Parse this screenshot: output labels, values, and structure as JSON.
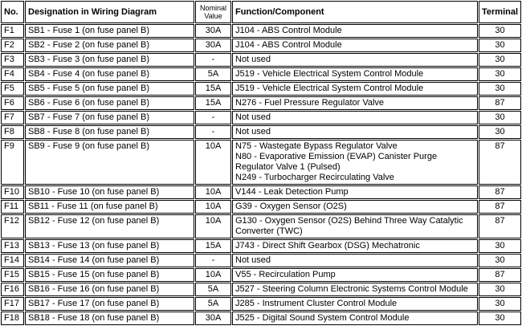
{
  "table": {
    "headers": {
      "no": "No.",
      "designation": "Designation in Wiring Diagram",
      "nominal": "Nominal\nValue",
      "function": "Function/Component",
      "terminal": "Terminal"
    },
    "rows": [
      {
        "no": "F1",
        "designation": "SB1 - Fuse 1 (on fuse panel B)",
        "nominal": "30A",
        "function": "J104 - ABS Control Module",
        "terminal": "30"
      },
      {
        "no": "F2",
        "designation": "SB2 - Fuse 2 (on fuse panel B)",
        "nominal": "30A",
        "function": "J104 - ABS Control Module",
        "terminal": "30"
      },
      {
        "no": "F3",
        "designation": "SB3 - Fuse 3 (on fuse panel B)",
        "nominal": "-",
        "function": "Not used",
        "terminal": "30"
      },
      {
        "no": "F4",
        "designation": "SB4 - Fuse 4 (on fuse panel B)",
        "nominal": "5A",
        "function": "J519 - Vehicle Electrical System Control Module",
        "terminal": "30"
      },
      {
        "no": "F5",
        "designation": "SB5 - Fuse 5 (on fuse panel B)",
        "nominal": "15A",
        "function": "J519 - Vehicle Electrical System Control Module",
        "terminal": "30"
      },
      {
        "no": "F6",
        "designation": "SB6 - Fuse 6 (on fuse panel B)",
        "nominal": "15A",
        "function": "N276 - Fuel Pressure Regulator Valve",
        "terminal": "87"
      },
      {
        "no": "F7",
        "designation": "SB7 - Fuse 7 (on fuse panel B)",
        "nominal": "-",
        "function": "Not used",
        "terminal": "30"
      },
      {
        "no": "F8",
        "designation": "SB8 - Fuse 8 (on fuse panel B)",
        "nominal": "-",
        "function": "Not used",
        "terminal": "30"
      },
      {
        "no": "F9",
        "designation": "SB9 - Fuse 9 (on fuse panel B)",
        "nominal": "10A",
        "function": "N75 - Wastegate Bypass Regulator Valve\nN80 - Evaporative Emission (EVAP) Canister Purge Regulator Valve 1 (Pulsed)\nN249 - Turbocharger Recirculating Valve",
        "terminal": "87"
      },
      {
        "no": "F10",
        "designation": "SB10 - Fuse 10 (on fuse panel B)",
        "nominal": "10A",
        "function": "V144 - Leak Detection Pump",
        "terminal": "87"
      },
      {
        "no": "F11",
        "designation": "SB11 - Fuse 11 (on fuse panel B)",
        "nominal": "10A",
        "function": "G39 - Oxygen Sensor (O2S)",
        "terminal": "87"
      },
      {
        "no": "F12",
        "designation": "SB12 - Fuse 12 (on fuse panel B)",
        "nominal": "10A",
        "function": "G130 - Oxygen Sensor (O2S) Behind Three Way Catalytic Converter (TWC)",
        "terminal": "87"
      },
      {
        "no": "F13",
        "designation": "SB13 - Fuse 13 (on fuse panel B)",
        "nominal": "15A",
        "function": "J743 - Direct Shift Gearbox (DSG) Mechatronic",
        "terminal": "30"
      },
      {
        "no": "F14",
        "designation": "SB14 - Fuse 14 (on fuse panel B)",
        "nominal": "-",
        "function": "Not used",
        "terminal": "30"
      },
      {
        "no": "F15",
        "designation": "SB15 - Fuse 15 (on fuse panel B)",
        "nominal": "10A",
        "function": "V55 - Recirculation Pump",
        "terminal": "87"
      },
      {
        "no": "F16",
        "designation": "SB16 - Fuse 16 (on fuse panel B)",
        "nominal": "5A",
        "function": "J527 - Steering Column Electronic Systems Control Module",
        "terminal": "30"
      },
      {
        "no": "F17",
        "designation": "SB17 - Fuse 17 (on fuse panel B)",
        "nominal": "5A",
        "function": "J285 - Instrument Cluster Control Module",
        "terminal": "30"
      },
      {
        "no": "F18",
        "designation": "SB18 - Fuse 18 (on fuse panel B)",
        "nominal": "30A",
        "function": "J525 - Digital Sound System Control Module",
        "terminal": "30"
      }
    ]
  }
}
